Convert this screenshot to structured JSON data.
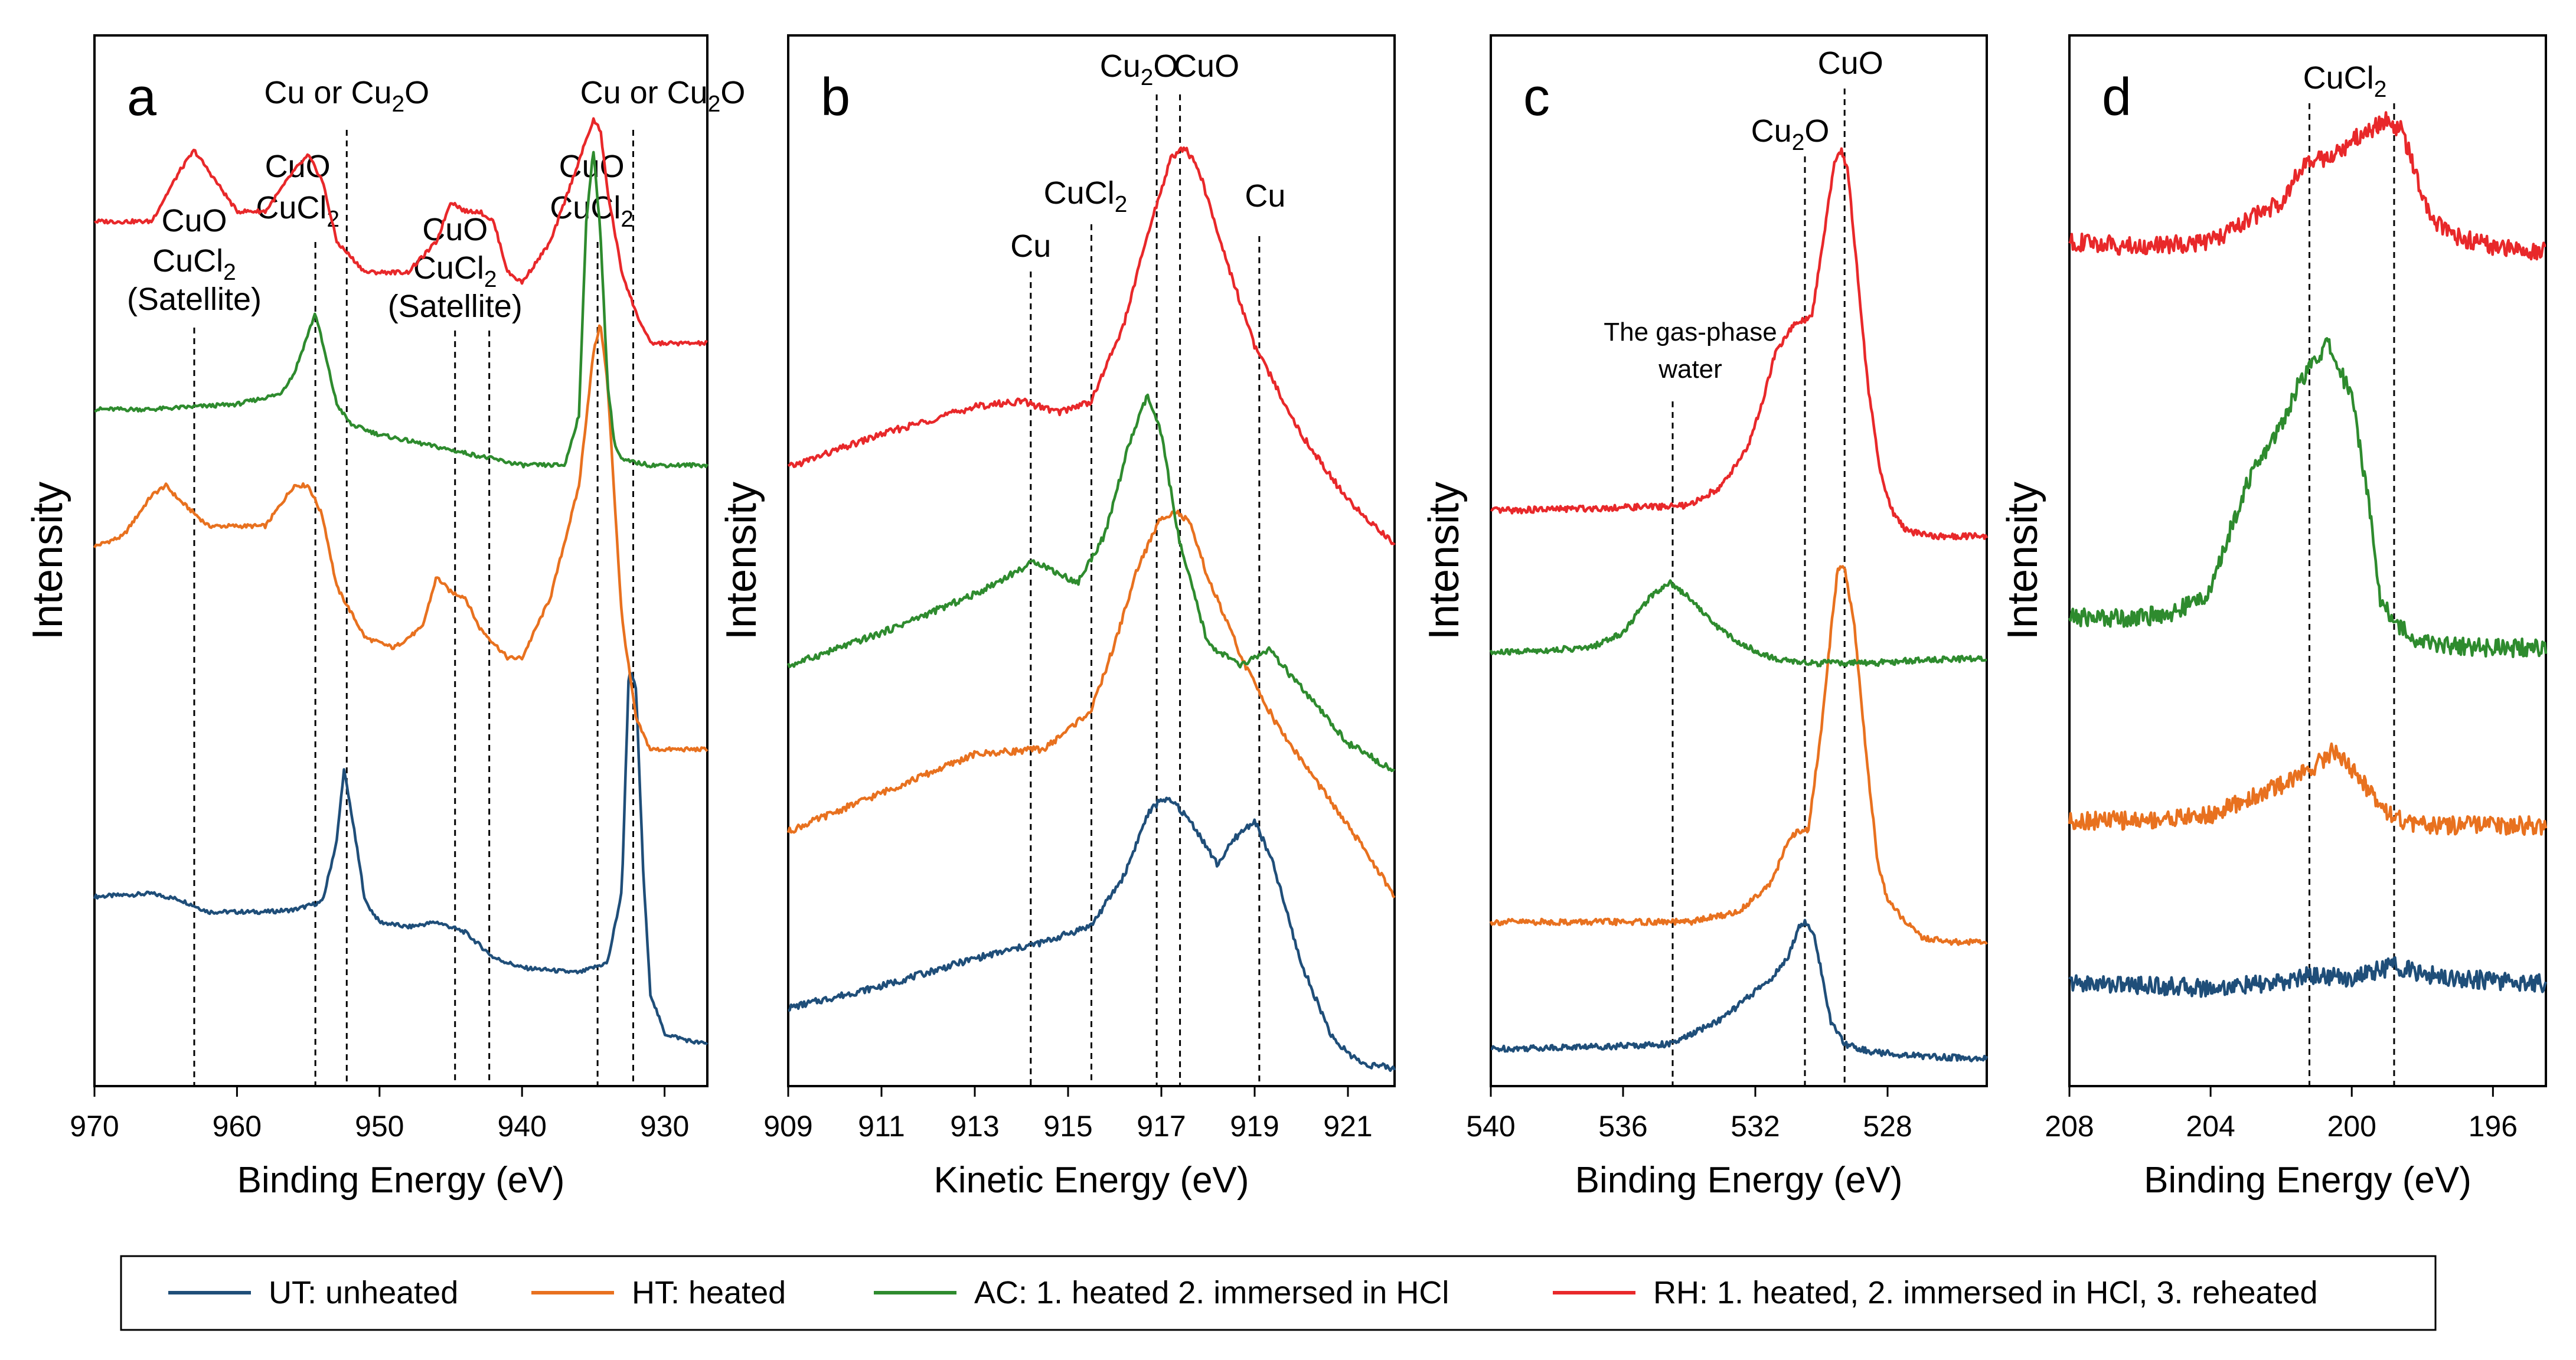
{
  "chart_data": [
    {
      "type": "line",
      "panel_label": "a",
      "xlabel": "Binding Energy (eV)",
      "ylabel": "Intensity",
      "xlim": [
        970,
        927
      ],
      "xticks": [
        "970",
        "960",
        "950",
        "940",
        "930"
      ],
      "reference_lines": [
        {
          "x": 963.0,
          "labels": [
            "CuO",
            "CuCl₂",
            "(Satellite)"
          ]
        },
        {
          "x": 954.5,
          "labels": [
            "CuO",
            "CuCl₂"
          ]
        },
        {
          "x": 952.3,
          "labels": [
            "Cu or Cu₂O"
          ]
        },
        {
          "x": 944.7,
          "labels": [
            "CuO",
            "CuCl₂",
            "(Satellite)"
          ]
        },
        {
          "x": 942.3,
          "labels": []
        },
        {
          "x": 934.7,
          "labels": [
            "CuO",
            "CuCl₂"
          ]
        },
        {
          "x": 932.2,
          "labels": [
            "Cu or Cu₂O"
          ]
        }
      ],
      "series": [
        {
          "name": "UT",
          "color": "#1f4e79",
          "x": [
            970,
            966,
            964,
            962,
            958,
            956,
            954,
            953,
            952.5,
            952,
            951,
            950,
            948,
            946,
            944,
            942,
            940,
            936,
            934,
            933,
            932.5,
            932,
            931.5,
            931,
            930,
            928,
            927
          ],
          "y": [
            1.75,
            1.78,
            1.72,
            1.6,
            1.6,
            1.62,
            1.7,
            2.3,
            3.0,
            2.6,
            1.7,
            1.5,
            1.45,
            1.5,
            1.4,
            1.15,
            1.05,
            1.0,
            1.1,
            1.8,
            4.0,
            3.8,
            2.0,
            0.8,
            0.4,
            0.32,
            0.3
          ]
        },
        {
          "name": "HT",
          "color": "#e8711f",
          "x": [
            970,
            968,
            966,
            965,
            964,
            962,
            958,
            956,
            955,
            954,
            953,
            951,
            949,
            947,
            946,
            945,
            944,
            943,
            941,
            940,
            938,
            936,
            935,
            934.5,
            934,
            933,
            932,
            931,
            928,
            927
          ],
          "y": [
            5.2,
            5.3,
            5.7,
            5.8,
            5.65,
            5.4,
            5.4,
            5.8,
            5.8,
            5.5,
            4.8,
            4.3,
            4.2,
            4.4,
            4.9,
            4.75,
            4.7,
            4.4,
            4.1,
            4.1,
            4.7,
            5.8,
            7.1,
            7.4,
            6.8,
            4.5,
            3.5,
            3.2,
            3.2,
            3.2
          ]
        },
        {
          "name": "AC",
          "color": "#2e8b2e",
          "x": [
            970,
            966,
            960,
            957,
            956,
            955,
            954.5,
            954,
            953,
            952,
            950,
            945,
            940,
            937,
            936,
            935.5,
            935,
            934.5,
            934,
            933.5,
            933,
            931,
            927
          ],
          "y": [
            6.55,
            6.55,
            6.6,
            6.7,
            6.9,
            7.3,
            7.5,
            7.2,
            6.6,
            6.4,
            6.3,
            6.15,
            6.0,
            6.0,
            6.5,
            8.4,
            9.1,
            8.3,
            6.8,
            6.2,
            6.05,
            6.0,
            6.0
          ]
        },
        {
          "name": "RH",
          "color": "#e8282a",
          "x": [
            970,
            966,
            964,
            963,
            962,
            960,
            958,
            956,
            955,
            954,
            953,
            951,
            948,
            946,
            945,
            944,
            943,
            942,
            941,
            940,
            938,
            936,
            935,
            934.5,
            934,
            933,
            932,
            931,
            928,
            927
          ],
          "y": [
            8.4,
            8.4,
            8.9,
            9.1,
            8.9,
            8.5,
            8.5,
            8.9,
            9.05,
            8.8,
            8.2,
            7.9,
            7.9,
            8.2,
            8.6,
            8.5,
            8.5,
            8.4,
            7.9,
            7.8,
            8.2,
            9.0,
            9.4,
            9.3,
            8.7,
            7.9,
            7.5,
            7.2,
            7.2,
            7.2
          ]
        }
      ]
    },
    {
      "type": "line",
      "panel_label": "b",
      "xlabel": "Kinetic Energy (eV)",
      "ylabel": "Intensity",
      "xlim": [
        909,
        922
      ],
      "xticks": [
        "909",
        "911",
        "913",
        "915",
        "917",
        "919",
        "921"
      ],
      "reference_lines": [
        {
          "x": 914.2,
          "labels": [
            "Cu"
          ]
        },
        {
          "x": 915.5,
          "labels": [
            "CuCl₂"
          ]
        },
        {
          "x": 916.9,
          "labels": [
            "Cu₂O"
          ]
        },
        {
          "x": 917.4,
          "labels": [
            "CuO"
          ]
        },
        {
          "x": 919.1,
          "labels": [
            "Cu"
          ]
        }
      ],
      "series": [
        {
          "name": "UT",
          "color": "#1f4e79",
          "x": [
            909,
            911,
            913,
            914.5,
            915.5,
            916.2,
            916.7,
            917.0,
            917.3,
            917.7,
            918.2,
            918.6,
            919.0,
            919.4,
            920.0,
            920.7,
            921.3,
            922
          ],
          "y": [
            0.6,
            0.8,
            1.05,
            1.2,
            1.35,
            1.8,
            2.35,
            2.5,
            2.45,
            2.25,
            1.9,
            2.15,
            2.3,
            1.9,
            1.0,
            0.3,
            0.1,
            0.05
          ]
        },
        {
          "name": "HT",
          "color": "#e8711f",
          "x": [
            909,
            911,
            913,
            914.5,
            915.5,
            916.0,
            916.5,
            917.0,
            917.3,
            917.6,
            918.0,
            918.8,
            919.5,
            920.5,
            921.5,
            922
          ],
          "y": [
            2.2,
            2.55,
            2.9,
            2.95,
            3.3,
            3.9,
            4.6,
            5.05,
            5.1,
            5.0,
            4.5,
            3.7,
            3.15,
            2.55,
            1.95,
            1.6
          ]
        },
        {
          "name": "AC",
          "color": "#2e8b2e",
          "x": [
            909,
            911,
            913,
            914.3,
            915.2,
            915.8,
            916.3,
            916.7,
            917.0,
            917.4,
            918.0,
            918.7,
            919.3,
            920.0,
            921.0,
            922
          ],
          "y": [
            3.7,
            4.0,
            4.35,
            4.65,
            4.45,
            4.9,
            5.7,
            6.15,
            5.8,
            4.8,
            3.9,
            3.7,
            3.85,
            3.5,
            3.0,
            2.75
          ]
        },
        {
          "name": "RH",
          "color": "#e8282a",
          "x": [
            909,
            911,
            913,
            914.0,
            914.8,
            915.5,
            916.2,
            916.7,
            917.2,
            917.5,
            917.8,
            918.3,
            919.0,
            920.0,
            921.0,
            922
          ],
          "y": [
            5.5,
            5.8,
            6.05,
            6.1,
            6.0,
            6.1,
            6.8,
            7.6,
            8.3,
            8.4,
            8.2,
            7.5,
            6.6,
            5.8,
            5.2,
            4.8
          ]
        }
      ]
    },
    {
      "type": "line",
      "panel_label": "c",
      "xlabel": "Binding Energy (eV)",
      "ylabel": "Intensity",
      "xlim": [
        540,
        525
      ],
      "xticks": [
        "540",
        "536",
        "532",
        "528"
      ],
      "reference_lines": [
        {
          "x": 534.5,
          "labels": [
            "The gas-phase",
            "water"
          ]
        },
        {
          "x": 530.5,
          "labels": [
            "Cu₂O"
          ]
        },
        {
          "x": 529.3,
          "labels": [
            "CuO"
          ]
        }
      ],
      "series": [
        {
          "name": "UT",
          "color": "#1f4e79",
          "x": [
            540,
            536,
            534.5,
            533,
            531.5,
            531,
            530.7,
            530.5,
            530.2,
            530.0,
            529.7,
            529.3,
            528.5,
            527,
            525
          ],
          "y": [
            0.25,
            0.28,
            0.3,
            0.55,
            0.95,
            1.15,
            1.45,
            1.5,
            1.35,
            1.0,
            0.5,
            0.3,
            0.22,
            0.18,
            0.15
          ]
        },
        {
          "name": "HT",
          "color": "#e8711f",
          "x": [
            540,
            534,
            532.5,
            531.5,
            531.0,
            530.7,
            530.4,
            530.0,
            529.7,
            529.5,
            529.3,
            529.0,
            528.6,
            528.3,
            528.0,
            527,
            526,
            525
          ],
          "y": [
            1.5,
            1.5,
            1.6,
            1.9,
            2.3,
            2.4,
            2.4,
            3.4,
            4.4,
            5.0,
            5.0,
            4.4,
            3.0,
            2.1,
            1.7,
            1.35,
            1.3,
            1.3
          ]
        },
        {
          "name": "AC",
          "color": "#2e8b2e",
          "x": [
            540,
            537,
            536,
            535.2,
            534.6,
            534.0,
            533.3,
            532.5,
            531.5,
            530.5,
            529.5,
            528.5,
            527,
            525
          ],
          "y": [
            4.15,
            4.2,
            4.35,
            4.7,
            4.85,
            4.7,
            4.45,
            4.25,
            4.1,
            4.05,
            4.05,
            4.05,
            4.08,
            4.1
          ]
        },
        {
          "name": "RH",
          "color": "#e8282a",
          "x": [
            540,
            534,
            533,
            532.2,
            531.8,
            531.4,
            530.8,
            530.3,
            530.0,
            529.6,
            529.4,
            529.2,
            529.0,
            528.6,
            528.2,
            527.8,
            527.4,
            526.5,
            525
          ],
          "y": [
            5.55,
            5.6,
            5.8,
            6.2,
            6.6,
            7.1,
            7.4,
            7.45,
            8.1,
            9.0,
            9.1,
            8.9,
            8.2,
            6.8,
            5.9,
            5.5,
            5.35,
            5.3,
            5.3
          ]
        }
      ]
    },
    {
      "type": "line",
      "panel_label": "d",
      "xlabel": "Binding Energy (eV)",
      "ylabel": "Intensity",
      "xlim": [
        208,
        194.5
      ],
      "xticks": [
        "208",
        "204",
        "200",
        "196"
      ],
      "reference_lines": [
        {
          "x": 201.2,
          "labels": [
            "CuCl₂"
          ]
        },
        {
          "x": 198.8,
          "labels": []
        }
      ],
      "series": [
        {
          "name": "UT",
          "color": "#1f4e79",
          "x": [
            208,
            206,
            204,
            202,
            201.2,
            200,
            199,
            198.8,
            198,
            196,
            194.5
          ],
          "y": [
            0.9,
            0.88,
            0.85,
            0.9,
            0.98,
            0.95,
            1.05,
            1.08,
            0.98,
            0.92,
            0.9
          ]
        },
        {
          "name": "HT",
          "color": "#e8711f",
          "x": [
            208,
            206,
            204,
            203,
            202,
            201.5,
            201.0,
            200.5,
            200.0,
            199.5,
            199.0,
            198.5,
            198.0,
            196,
            194.5
          ],
          "y": [
            2.5,
            2.5,
            2.55,
            2.7,
            2.85,
            2.95,
            3.05,
            3.2,
            3.0,
            2.8,
            2.6,
            2.48,
            2.45,
            2.45,
            2.45
          ]
        },
        {
          "name": "AC",
          "color": "#2e8b2e",
          "x": [
            208,
            206,
            205,
            204,
            203.5,
            203,
            202.5,
            202,
            201.5,
            201.0,
            200.7,
            200.3,
            200.0,
            199.5,
            199.2,
            198.8,
            198.0,
            196,
            194.5
          ],
          "y": [
            4.5,
            4.5,
            4.55,
            4.75,
            5.3,
            5.8,
            6.1,
            6.4,
            6.8,
            7.05,
            7.2,
            6.9,
            6.7,
            5.6,
            4.7,
            4.45,
            4.25,
            4.2,
            4.2
          ]
        },
        {
          "name": "RH",
          "color": "#e8282a",
          "x": [
            208,
            206,
            204,
            203,
            202,
            201.5,
            201.0,
            200.5,
            200.0,
            199.5,
            199.0,
            198.6,
            198.2,
            197.8,
            197,
            196,
            194.5
          ],
          "y": [
            8.2,
            8.15,
            8.2,
            8.4,
            8.6,
            8.9,
            9.0,
            9.05,
            9.2,
            9.3,
            9.4,
            9.3,
            8.9,
            8.45,
            8.25,
            8.15,
            8.1
          ]
        }
      ]
    }
  ],
  "legend": [
    {
      "key": "UT",
      "label": "UT: unheated",
      "color": "#1f4e79"
    },
    {
      "key": "HT",
      "label": "HT: heated",
      "color": "#e8711f"
    },
    {
      "key": "AC",
      "label": "AC: 1. heated 2. immersed in HCl",
      "color": "#2e8b2e"
    },
    {
      "key": "RH",
      "label": "RH: 1. heated, 2. immersed in HCl, 3. reheated",
      "color": "#e8282a"
    }
  ]
}
